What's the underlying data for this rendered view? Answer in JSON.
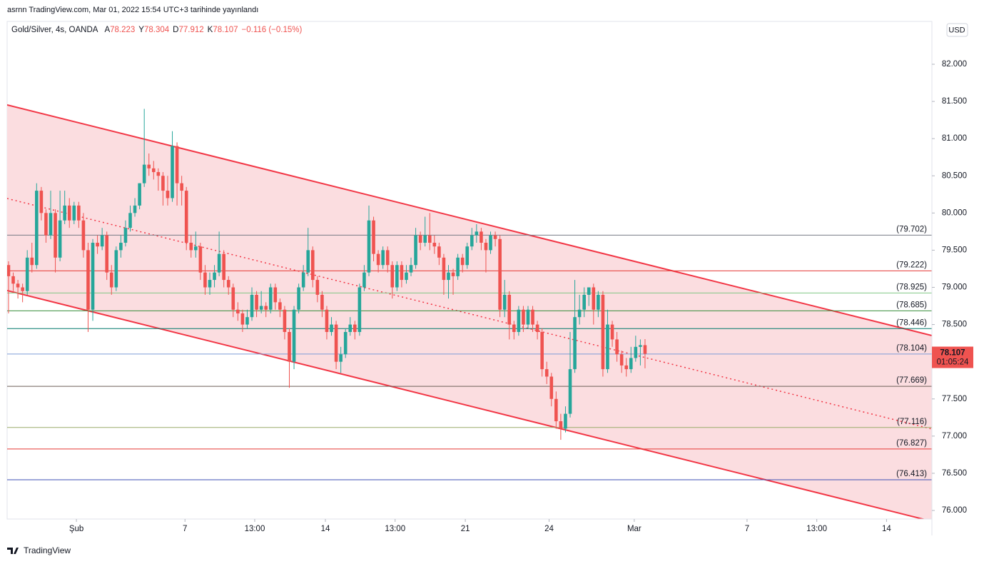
{
  "header": "asrnn TradingView.com, Mar 01, 2022 15:54 UTC+3 tarihinde yayınlandı",
  "footer": "TradingView",
  "chart_data": {
    "type": "candlestick",
    "title": "Gold/Silver, 4s, OANDA",
    "ohlc_labels": [
      "A",
      "Y",
      "D",
      "K"
    ],
    "change_label": "−0.116 (−0.15%)",
    "currency": "USD",
    "countdown": "01:05:24",
    "up_color": "#26a69a",
    "down_color": "#ef5350",
    "xlim": [
      -0.3,
      197.3
    ],
    "xticks": [
      {
        "value": 14.5,
        "label": "Şub"
      },
      {
        "value": 37.7,
        "label": "7"
      },
      {
        "value": 52.6,
        "label": "13:00"
      },
      {
        "value": 67.7,
        "label": "14"
      },
      {
        "value": 82.6,
        "label": "13:00"
      },
      {
        "value": 97.6,
        "label": "21"
      },
      {
        "value": 115.5,
        "label": "24"
      },
      {
        "value": 133.7,
        "label": "Mar"
      },
      {
        "value": 157.8,
        "label": "7"
      },
      {
        "value": 172.7,
        "label": "13:00"
      },
      {
        "value": 187.6,
        "label": "14"
      }
    ],
    "ylim": [
      75.885,
      82.576
    ],
    "yticks": [
      {
        "value": 76,
        "label": "76.000"
      },
      {
        "value": 76.5,
        "label": "76.500"
      },
      {
        "value": 77,
        "label": "77.000"
      },
      {
        "value": 77.5,
        "label": "77.500"
      },
      {
        "value": 78,
        "label": "78.000"
      },
      {
        "value": 78.5,
        "label": "78.500"
      },
      {
        "value": 79,
        "label": "79.000"
      },
      {
        "value": 79.5,
        "label": "79.500"
      },
      {
        "value": 80,
        "label": "80.000"
      },
      {
        "value": 80.5,
        "label": "80.500"
      },
      {
        "value": 81,
        "label": "81.000"
      },
      {
        "value": 81.5,
        "label": "81.500"
      },
      {
        "value": 82,
        "label": "82.000"
      }
    ],
    "open": [
      79.3,
      79.15,
      79.05,
      79.0,
      78.95,
      79.4,
      79.3,
      80.3,
      80.0,
      79.7,
      80.0,
      79.4,
      79.9,
      80.1,
      79.9,
      80.1,
      79.9,
      79.5,
      78.7,
      79.6,
      79.55,
      79.7,
      79.2,
      79.0,
      79.5,
      79.6,
      79.8,
      80.0,
      80.1,
      80.4,
      80.65,
      80.6,
      80.55,
      80.5,
      80.3,
      80.2,
      80.9,
      80.4,
      80.3,
      79.6,
      79.5,
      79.55,
      79.2,
      79.0,
      79.1,
      79.2,
      79.45,
      79.1,
      79.0,
      78.7,
      78.65,
      78.5,
      78.6,
      78.9,
      78.7,
      78.75,
      78.7,
      79.0,
      78.8,
      78.7,
      78.4,
      78.0,
      78.7,
      79.0,
      79.2,
      79.5,
      79.1,
      78.9,
      78.7,
      78.4,
      78.5,
      78.0,
      78.1,
      78.4,
      78.5,
      78.4,
      79.0,
      79.2,
      79.9,
      79.45,
      79.3,
      79.5,
      79.3,
      79.0,
      79.3,
      79.1,
      79.2,
      79.3,
      79.7,
      79.6,
      79.7,
      79.6,
      79.55,
      79.4,
      79.1,
      79.2,
      79.15,
      79.4,
      79.3,
      79.55,
      79.7,
      79.75,
      79.6,
      79.5,
      79.7,
      79.65,
      78.7,
      78.9,
      78.5,
      78.4,
      78.7,
      78.5,
      78.7,
      78.5,
      78.4,
      77.9,
      77.8,
      77.5,
      77.2,
      77.1,
      77.3,
      77.9,
      78.6,
      78.7,
      78.9,
      79.0,
      78.7,
      78.9,
      77.9,
      78.5,
      78.3,
      78.1,
      77.95,
      77.9,
      78.05,
      78.2,
      78.223
    ],
    "high": [
      79.35,
      79.2,
      79.1,
      79.05,
      79.5,
      79.6,
      80.4,
      80.35,
      80.05,
      80.3,
      80.05,
      80.3,
      80.3,
      80.2,
      80.15,
      80.15,
      80.0,
      79.6,
      79.65,
      79.7,
      79.8,
      79.75,
      79.3,
      79.55,
      79.7,
      79.9,
      80.1,
      80.2,
      80.4,
      81.4,
      80.8,
      80.7,
      80.6,
      80.55,
      80.5,
      81.1,
      80.95,
      80.5,
      80.35,
      79.7,
      79.75,
      79.6,
      79.3,
      79.2,
      79.3,
      79.75,
      79.5,
      79.15,
      79.05,
      78.8,
      78.7,
      78.7,
      79.0,
      78.95,
      78.95,
      78.8,
      79.05,
      79.05,
      78.85,
      78.75,
      78.45,
      78.75,
      79.05,
      79.3,
      79.8,
      79.55,
      79.15,
      78.95,
      78.75,
      78.6,
      78.55,
      78.2,
      78.45,
      78.6,
      78.55,
      79.05,
      79.3,
      80.1,
      79.95,
      79.5,
      79.55,
      79.55,
      79.35,
      79.35,
      79.35,
      79.3,
      79.4,
      79.8,
      79.75,
      79.95,
      80.0,
      79.7,
      79.6,
      79.45,
      79.3,
      79.25,
      79.45,
      79.45,
      79.6,
      79.8,
      79.85,
      79.8,
      79.65,
      79.75,
      79.75,
      79.7,
      79.1,
      78.95,
      78.55,
      78.75,
      78.75,
      78.75,
      78.75,
      78.55,
      78.45,
      78.0,
      77.85,
      77.6,
      77.3,
      77.4,
      78.4,
      79.1,
      78.9,
      79.0,
      79.0,
      79.05,
      78.95,
      78.95,
      78.7,
      78.55,
      78.4,
      78.15,
      78.05,
      78.2,
      78.35,
      78.3,
      78.304
    ],
    "low": [
      78.65,
      78.95,
      78.85,
      78.8,
      78.9,
      79.2,
      79.25,
      79.9,
      79.6,
      79.65,
      79.2,
      79.35,
      79.85,
      79.8,
      79.85,
      79.8,
      79.4,
      78.4,
      78.55,
      79.45,
      79.5,
      79.1,
      78.9,
      78.95,
      79.4,
      79.55,
      79.75,
      79.95,
      80.05,
      80.35,
      80.5,
      80.45,
      80.3,
      80.1,
      80.1,
      80.15,
      80.1,
      80.1,
      79.5,
      79.4,
      79.4,
      79.1,
      78.9,
      78.9,
      79.0,
      79.15,
      79.0,
      78.9,
      78.6,
      78.55,
      78.4,
      78.45,
      78.55,
      78.6,
      78.65,
      78.6,
      78.65,
      78.7,
      78.6,
      78.3,
      77.65,
      77.9,
      78.65,
      78.95,
      79.15,
      79.0,
      78.8,
      78.6,
      78.3,
      78.35,
      77.9,
      77.85,
      78.05,
      78.35,
      78.3,
      78.35,
      78.95,
      79.15,
      79.35,
      79.2,
      79.25,
      79.2,
      78.85,
      78.95,
      79.0,
      79.05,
      79.15,
      79.25,
      79.5,
      79.55,
      79.5,
      79.45,
      79.3,
      78.9,
      78.85,
      78.9,
      79.1,
      79.2,
      79.25,
      79.5,
      79.6,
      79.5,
      79.2,
      79.45,
      79.55,
      78.6,
      78.6,
      78.3,
      78.3,
      78.35,
      78.4,
      78.45,
      78.4,
      78.3,
      77.8,
      77.7,
      77.4,
      77.1,
      76.95,
      77.05,
      77.25,
      77.85,
      78.5,
      78.6,
      78.75,
      78.5,
      78.6,
      77.8,
      77.85,
      78.2,
      78.0,
      77.85,
      77.8,
      77.85,
      78.0,
      77.95,
      77.912
    ],
    "close": [
      79.15,
      79.05,
      79.0,
      78.95,
      79.4,
      79.3,
      80.3,
      80.0,
      79.7,
      80.0,
      79.4,
      79.9,
      80.1,
      79.9,
      80.1,
      79.9,
      79.5,
      78.7,
      79.6,
      79.55,
      79.7,
      79.2,
      79.0,
      79.5,
      79.6,
      79.8,
      80.0,
      80.1,
      80.4,
      80.65,
      80.6,
      80.55,
      80.5,
      80.3,
      80.2,
      80.9,
      80.4,
      80.3,
      79.6,
      79.5,
      79.55,
      79.2,
      79.0,
      79.1,
      79.2,
      79.45,
      79.1,
      79.0,
      78.7,
      78.65,
      78.5,
      78.6,
      78.9,
      78.7,
      78.75,
      78.7,
      79.0,
      78.8,
      78.7,
      78.4,
      78.0,
      78.7,
      79.0,
      79.2,
      79.5,
      79.1,
      78.9,
      78.7,
      78.4,
      78.5,
      78.0,
      78.1,
      78.4,
      78.5,
      78.4,
      79.0,
      79.2,
      79.9,
      79.45,
      79.3,
      79.5,
      79.3,
      79.0,
      79.3,
      79.1,
      79.2,
      79.3,
      79.7,
      79.6,
      79.7,
      79.6,
      79.55,
      79.4,
      79.1,
      79.2,
      79.15,
      79.4,
      79.3,
      79.55,
      79.7,
      79.75,
      79.6,
      79.5,
      79.7,
      79.65,
      78.7,
      78.9,
      78.5,
      78.4,
      78.7,
      78.5,
      78.7,
      78.5,
      78.4,
      77.9,
      77.8,
      77.5,
      77.2,
      77.1,
      77.3,
      77.9,
      78.6,
      78.7,
      78.9,
      79.0,
      78.7,
      78.9,
      77.9,
      78.5,
      78.3,
      78.1,
      77.95,
      77.9,
      78.05,
      78.2,
      78.223,
      78.107
    ],
    "levels": [
      {
        "value": 79.702,
        "label": "(79.702)",
        "color": "#787b86"
      },
      {
        "value": 79.222,
        "label": "(79.222)",
        "color": "#e53935"
      },
      {
        "value": 78.925,
        "label": "(78.925)",
        "color": "#81c784"
      },
      {
        "value": 78.685,
        "label": "(78.685)",
        "color": "#388e3c"
      },
      {
        "value": 78.446,
        "label": "(78.446)",
        "color": "#00796b"
      },
      {
        "value": 78.104,
        "label": "(78.104)",
        "color": "#7e9cd8"
      },
      {
        "value": 77.669,
        "label": "(77.669)",
        "color": "#6d5f58"
      },
      {
        "value": 77.116,
        "label": "(77.116)",
        "color": "#9aab6a"
      },
      {
        "value": 76.827,
        "label": "(76.827)",
        "color": "#e53935"
      },
      {
        "value": 76.413,
        "label": "(76.413)",
        "color": "#3f51b5"
      }
    ],
    "channel": {
      "color": "#f23645",
      "fill": "#fbdde0",
      "upper": {
        "x": [
          -0.3,
          197.3
        ],
        "y": [
          81.453,
          78.352
        ]
      },
      "lower": {
        "x": [
          -0.3,
          197.3
        ],
        "y": [
          78.957,
          75.854
        ]
      },
      "middle": {
        "x": [
          -0.3,
          197.3
        ],
        "y": [
          80.195,
          77.095
        ]
      }
    }
  }
}
